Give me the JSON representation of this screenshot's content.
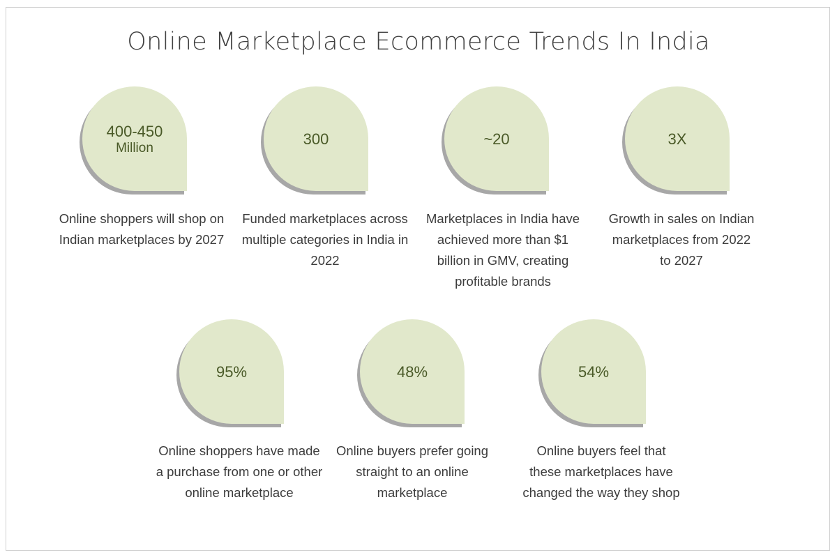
{
  "title": "Online Marketplace Ecommerce Trends In India",
  "colors": {
    "bubble_fill": "#e1e8cb",
    "bubble_shadow": "#a7a7a7",
    "stat_text": "#4a5a28",
    "body_text": "#3c3c3c",
    "frame_border": "#cfcfcf"
  },
  "stats": [
    {
      "value": "400-450",
      "unit": "Million",
      "description": "Online shoppers will shop on Indian marketplaces by 2027"
    },
    {
      "value": "300",
      "description": "Funded marketplaces across multiple categories in India in 2022"
    },
    {
      "value": "~20",
      "description": "Marketplaces in India have achieved more than $1 billion in GMV, creating profitable brands"
    },
    {
      "value": "3X",
      "description": "Growth in sales on Indian marketplaces from 2022 to 2027"
    },
    {
      "value": "95%",
      "description": "Online shoppers have made a purchase from one or other online marketplace"
    },
    {
      "value": "48%",
      "description": "Online buyers prefer going straight to an online marketplace"
    },
    {
      "value": "54%",
      "description": "Online buyers feel that these marketplaces have changed the way they shop"
    }
  ]
}
